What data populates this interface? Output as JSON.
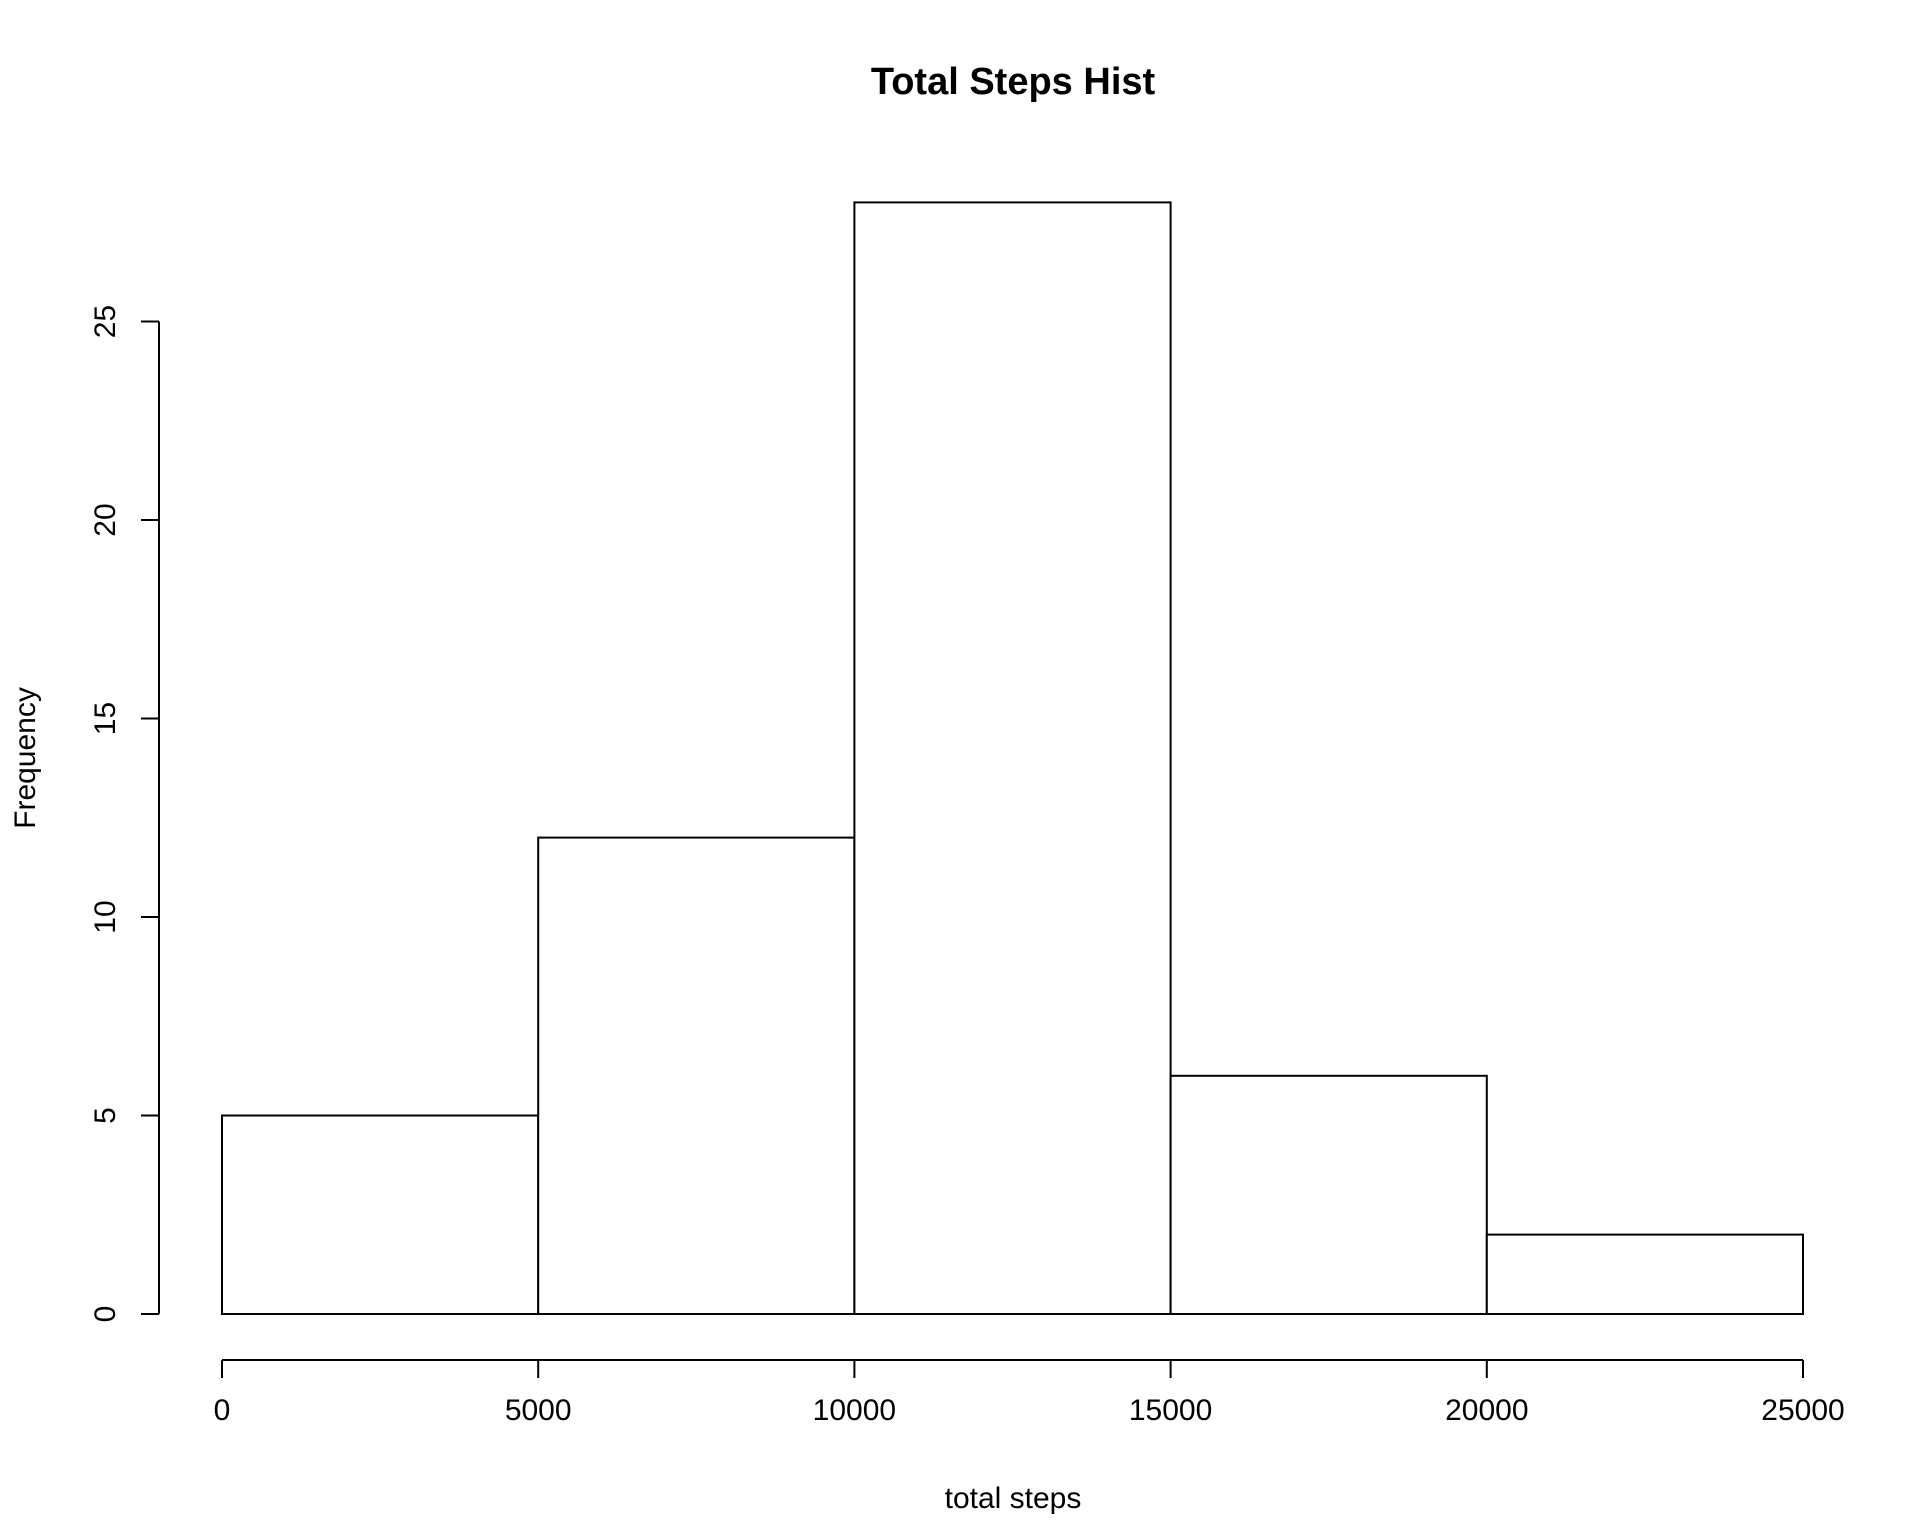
{
  "chart_data": {
    "type": "bar",
    "title": "Total Steps Hist",
    "xlabel": "total steps",
    "ylabel": "Frequency",
    "bins": [
      {
        "from": 0,
        "to": 5000,
        "count": 5
      },
      {
        "from": 5000,
        "to": 10000,
        "count": 12
      },
      {
        "from": 10000,
        "to": 15000,
        "count": 28
      },
      {
        "from": 15000,
        "to": 20000,
        "count": 6
      },
      {
        "from": 20000,
        "to": 25000,
        "count": 2
      }
    ],
    "xlim": [
      0,
      25000
    ],
    "ylim": [
      0,
      28
    ],
    "x_ticks": [
      "0",
      "5000",
      "10000",
      "15000",
      "20000",
      "25000"
    ],
    "y_ticks": [
      "0",
      "5",
      "10",
      "15",
      "20",
      "25"
    ],
    "bar_fill": "#ffffff",
    "bar_stroke": "#000000",
    "grid": false,
    "legend": "none"
  }
}
